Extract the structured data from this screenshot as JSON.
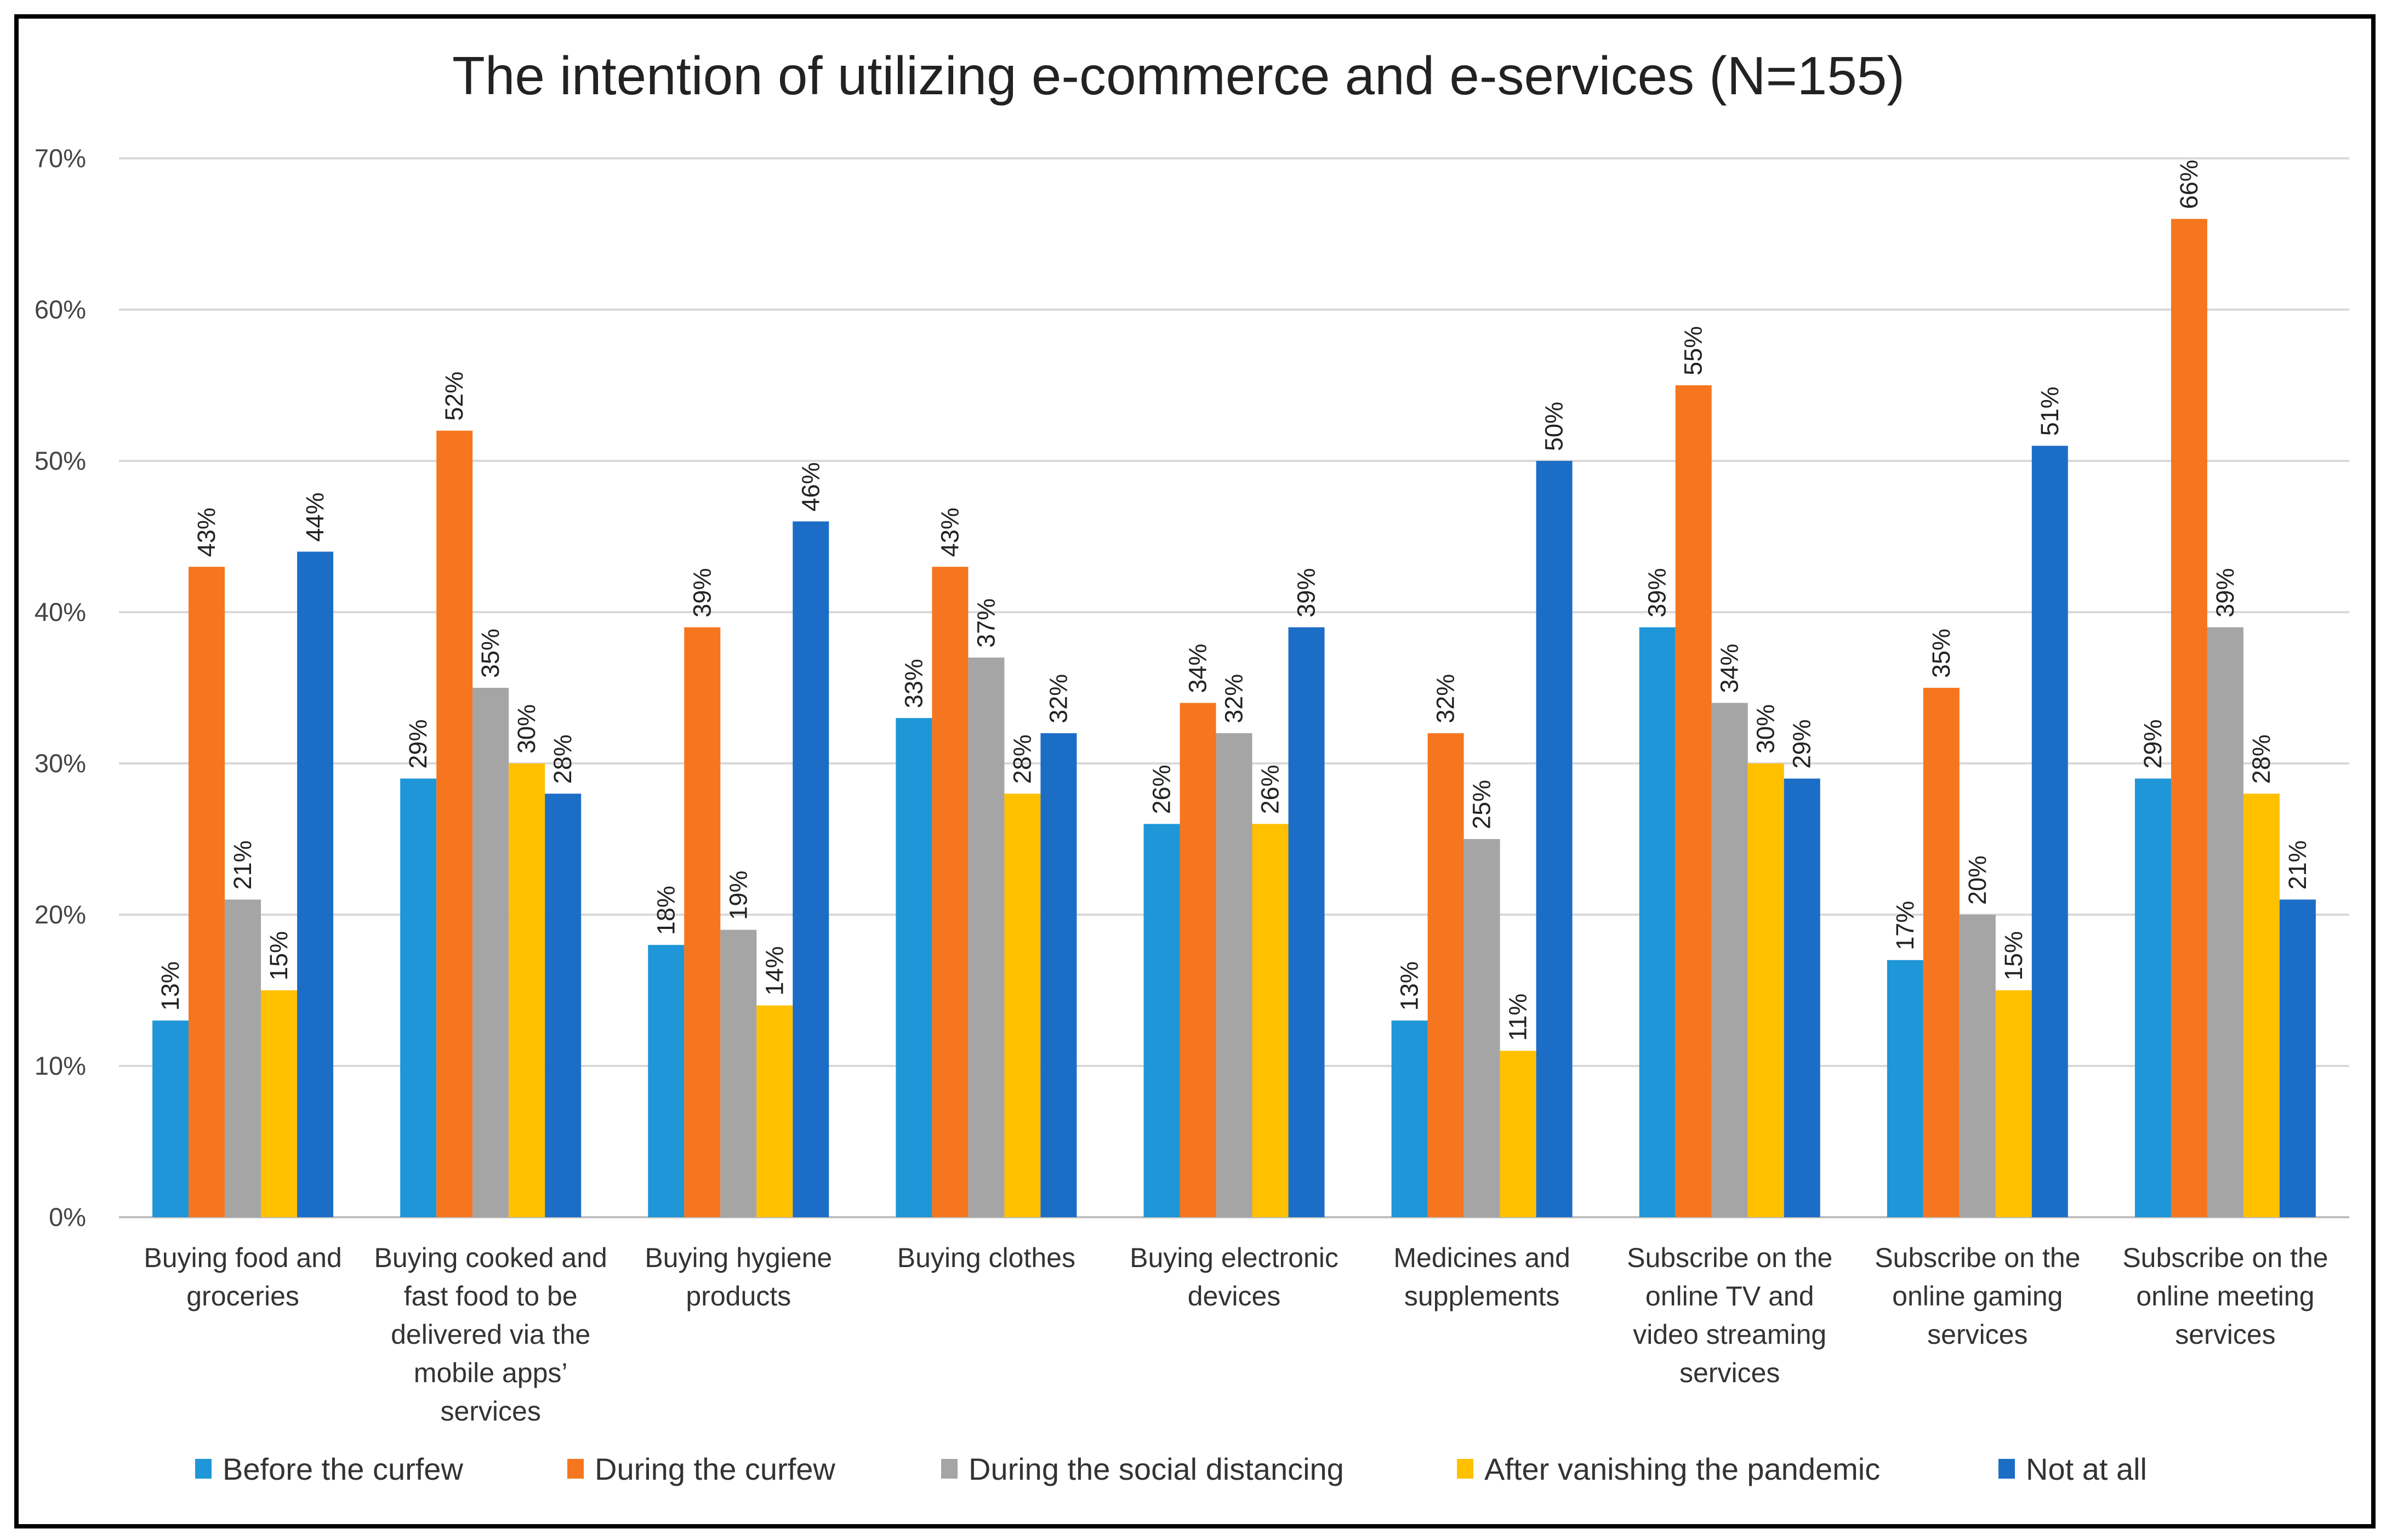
{
  "chart_data": {
    "type": "bar",
    "title": "The intention of utilizing e-commerce and e-services (N=155)",
    "xlabel": "",
    "ylabel": "",
    "ylim": [
      0,
      70
    ],
    "yticks": [
      "0%",
      "10%",
      "20%",
      "30%",
      "40%",
      "50%",
      "60%",
      "70%"
    ],
    "grid": true,
    "legend_position": "bottom",
    "categories": [
      [
        "Buying food and",
        "groceries"
      ],
      [
        "Buying cooked and",
        "fast food to be",
        "delivered via the",
        "mobile apps’",
        "services"
      ],
      [
        "Buying hygiene",
        "products"
      ],
      [
        "Buying clothes"
      ],
      [
        "Buying electronic",
        "devices"
      ],
      [
        "Medicines and",
        "supplements"
      ],
      [
        "Subscribe on the",
        "online TV and",
        "video streaming",
        "services"
      ],
      [
        "Subscribe on the",
        "online gaming",
        "services"
      ],
      [
        "Subscribe on the",
        "online meeting",
        "services"
      ]
    ],
    "series": [
      {
        "name": "Before the curfew",
        "color": "#1E96D8",
        "values": [
          13,
          29,
          18,
          33,
          26,
          13,
          39,
          17,
          29
        ]
      },
      {
        "name": "During the curfew",
        "color": "#F5761F",
        "values": [
          43,
          52,
          39,
          43,
          34,
          32,
          55,
          35,
          66
        ]
      },
      {
        "name": "During the social distancing",
        "color": "#A5A5A5",
        "values": [
          21,
          35,
          19,
          37,
          32,
          25,
          34,
          20,
          39
        ]
      },
      {
        "name": "After vanishing the pandemic",
        "color": "#FFC000",
        "values": [
          15,
          30,
          14,
          28,
          26,
          11,
          30,
          15,
          28
        ]
      },
      {
        "name": "Not at all",
        "color": "#1C6DC6",
        "values": [
          44,
          28,
          46,
          32,
          39,
          50,
          29,
          51,
          21
        ]
      }
    ],
    "value_suffix": "%"
  }
}
